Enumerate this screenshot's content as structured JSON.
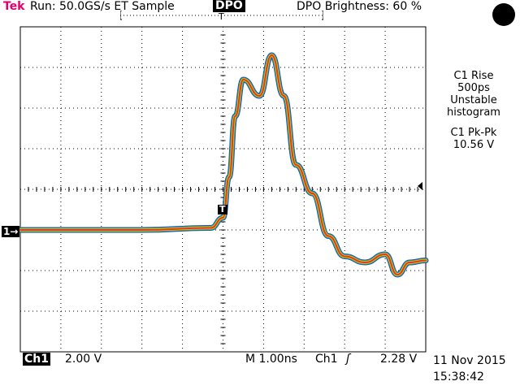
{
  "header": {
    "brand": "Tek",
    "run_status": "Run: 50.0GS/s ET Sample",
    "mode": "DPO",
    "brightness": "DPO Brightness: 60 %"
  },
  "measurements": {
    "rise_label": "C1 Rise",
    "rise_value": "500ps",
    "rise_status": "Unstable",
    "rise_note": "histogram",
    "pkpk_label": "C1 Pk-Pk",
    "pkpk_value": "10.56 V"
  },
  "footer": {
    "channel": "Ch1",
    "volts_per_div": "2.00 V",
    "timebase": "M 1.00ns",
    "trigger_source": "Ch1",
    "trigger_edge": "ʃ",
    "trigger_level": "2.28 V",
    "date": "11 Nov 2015",
    "time": "15:38:42"
  },
  "markers": {
    "channel_marker": "1→",
    "trigger_marker": "T",
    "trigger_top": "T"
  },
  "colors": {
    "grid": "#000000",
    "trace_outer": "#1f4fd8",
    "trace_mid": "#2bb24c",
    "trace_core": "#e23a1c",
    "brand": "#e0006a"
  },
  "chart_data": {
    "type": "line",
    "title": "",
    "xlabel": "",
    "ylabel": "",
    "x_units": "ns",
    "y_units": "V",
    "xlim": [
      -5,
      5
    ],
    "ylim": [
      -8,
      8
    ],
    "grid": true,
    "series": [
      {
        "x": [
          -5.0,
          -2.0,
          -0.3,
          0.0,
          0.15,
          0.3,
          0.5,
          0.9,
          1.2,
          1.5,
          1.8,
          2.2,
          2.6,
          3.0,
          3.5,
          4.0,
          4.3,
          4.6,
          5.0
        ],
        "y": [
          -2.0,
          -2.0,
          -1.9,
          -1.4,
          0.6,
          3.6,
          5.4,
          4.6,
          6.6,
          4.6,
          1.2,
          -0.2,
          -2.3,
          -3.3,
          -3.6,
          -3.2,
          -4.2,
          -3.6,
          -3.5
        ]
      }
    ]
  }
}
